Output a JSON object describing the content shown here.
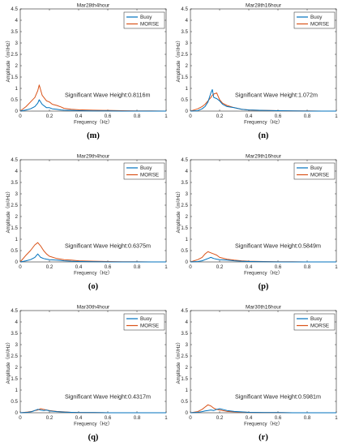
{
  "colors": {
    "buoy": "#0072BD",
    "morse": "#D95319",
    "axis": "#262626"
  },
  "axes": {
    "ylabel": "Amplitude（m²/Hz）",
    "xlabel": "Frequency（Hz）",
    "xlim": [
      0,
      1
    ],
    "ylim": [
      0,
      4.5
    ]
  },
  "legend": {
    "buoy": "Buoy",
    "morse": "MORSE"
  },
  "chart_data": [
    {
      "type": "line",
      "panel": "m",
      "title": "Mar28th4hour",
      "annotation": "Significant Wave Height:0.8116m",
      "x": [
        0,
        0.04,
        0.07,
        0.1,
        0.12,
        0.13,
        0.15,
        0.18,
        0.2,
        0.22,
        0.25,
        0.28,
        0.3,
        0.35,
        0.4,
        0.5,
        0.6,
        0.7,
        0.8,
        0.9,
        1.0
      ],
      "series": [
        {
          "name": "Buoy",
          "values": [
            0,
            0.05,
            0.1,
            0.2,
            0.35,
            0.5,
            0.3,
            0.15,
            0.15,
            0.1,
            0.08,
            0.05,
            0.04,
            0.03,
            0.02,
            0.01,
            0.01,
            0,
            0,
            0,
            0
          ]
        },
        {
          "name": "MORSE",
          "values": [
            0,
            0.2,
            0.4,
            0.6,
            0.9,
            1.15,
            0.7,
            0.45,
            0.4,
            0.3,
            0.25,
            0.18,
            0.12,
            0.08,
            0.06,
            0.04,
            0.03,
            0.02,
            0.01,
            0.01,
            0
          ]
        }
      ]
    },
    {
      "type": "line",
      "panel": "n",
      "title": "Mar28th16hour",
      "annotation": "Significant Wave Height:1.072m",
      "x": [
        0,
        0.05,
        0.08,
        0.1,
        0.12,
        0.14,
        0.15,
        0.16,
        0.18,
        0.2,
        0.22,
        0.25,
        0.3,
        0.35,
        0.4,
        0.5,
        0.6,
        0.7,
        0.8,
        0.9,
        1.0
      ],
      "series": [
        {
          "name": "Buoy",
          "values": [
            0,
            0.02,
            0.1,
            0.2,
            0.4,
            0.8,
            0.95,
            0.6,
            0.55,
            0.45,
            0.3,
            0.2,
            0.15,
            0.08,
            0.05,
            0.03,
            0.02,
            0.01,
            0,
            0,
            0
          ]
        },
        {
          "name": "MORSE",
          "values": [
            0,
            0.1,
            0.2,
            0.3,
            0.45,
            0.6,
            0.7,
            0.75,
            0.8,
            0.5,
            0.35,
            0.25,
            0.15,
            0.08,
            0.05,
            0.03,
            0.02,
            0.01,
            0.01,
            0,
            0
          ]
        }
      ]
    },
    {
      "type": "line",
      "panel": "o",
      "title": "Mar29th4hour",
      "annotation": "Significant Wave Height:0.6375m",
      "x": [
        0,
        0.04,
        0.07,
        0.1,
        0.12,
        0.14,
        0.16,
        0.18,
        0.2,
        0.25,
        0.3,
        0.35,
        0.4,
        0.5,
        0.6,
        0.7,
        0.8,
        0.9,
        1.0
      ],
      "series": [
        {
          "name": "Buoy",
          "values": [
            0,
            0.05,
            0.1,
            0.2,
            0.35,
            0.2,
            0.15,
            0.12,
            0.1,
            0.08,
            0.05,
            0.03,
            0.02,
            0.01,
            0,
            0,
            0,
            0,
            0
          ]
        },
        {
          "name": "MORSE",
          "values": [
            0,
            0.3,
            0.5,
            0.75,
            0.85,
            0.7,
            0.5,
            0.35,
            0.25,
            0.15,
            0.1,
            0.08,
            0.05,
            0.03,
            0.02,
            0.01,
            0.01,
            0,
            0
          ]
        }
      ]
    },
    {
      "type": "line",
      "panel": "p",
      "title": "Mar29th16hour",
      "annotation": "Significant Wave Height:0.5849m",
      "x": [
        0,
        0.05,
        0.08,
        0.1,
        0.12,
        0.14,
        0.16,
        0.18,
        0.2,
        0.25,
        0.3,
        0.35,
        0.4,
        0.5,
        0.6,
        0.7,
        0.8,
        0.9,
        1.0
      ],
      "series": [
        {
          "name": "Buoy",
          "values": [
            0,
            0.02,
            0.05,
            0.1,
            0.15,
            0.2,
            0.15,
            0.12,
            0.1,
            0.08,
            0.05,
            0.03,
            0.02,
            0.01,
            0,
            0,
            0,
            0,
            0
          ]
        },
        {
          "name": "MORSE",
          "values": [
            0,
            0.1,
            0.2,
            0.35,
            0.45,
            0.4,
            0.35,
            0.3,
            0.2,
            0.12,
            0.08,
            0.05,
            0.03,
            0.02,
            0.01,
            0.01,
            0,
            0,
            0
          ]
        }
      ]
    },
    {
      "type": "line",
      "panel": "q",
      "title": "Mar30th4hour",
      "annotation": "Significant Wave Height:0.4317m",
      "x": [
        0,
        0.05,
        0.08,
        0.1,
        0.12,
        0.14,
        0.16,
        0.18,
        0.2,
        0.25,
        0.3,
        0.35,
        0.4,
        0.5,
        0.6,
        0.7,
        0.8,
        0.9,
        1.0
      ],
      "series": [
        {
          "name": "Buoy",
          "values": [
            0,
            0.02,
            0.05,
            0.1,
            0.15,
            0.12,
            0.1,
            0.12,
            0.08,
            0.05,
            0.03,
            0.02,
            0.01,
            0.01,
            0,
            0,
            0,
            0,
            0
          ]
        },
        {
          "name": "MORSE",
          "values": [
            0,
            0.03,
            0.06,
            0.1,
            0.12,
            0.18,
            0.15,
            0.12,
            0.1,
            0.06,
            0.04,
            0.02,
            0.01,
            0.01,
            0,
            0,
            0,
            0,
            0
          ]
        }
      ]
    },
    {
      "type": "line",
      "panel": "r",
      "title": "Mar30th16hour",
      "annotation": "Significant Wave Height:0.5981m",
      "x": [
        0,
        0.05,
        0.08,
        0.1,
        0.12,
        0.14,
        0.16,
        0.18,
        0.2,
        0.22,
        0.25,
        0.3,
        0.35,
        0.4,
        0.5,
        0.6,
        0.7,
        0.8,
        0.9,
        1.0
      ],
      "series": [
        {
          "name": "Buoy",
          "values": [
            0,
            0.02,
            0.05,
            0.08,
            0.1,
            0.12,
            0.1,
            0.15,
            0.18,
            0.15,
            0.1,
            0.06,
            0.04,
            0.02,
            0.01,
            0.01,
            0,
            0,
            0,
            0
          ]
        },
        {
          "name": "MORSE",
          "values": [
            0,
            0.05,
            0.15,
            0.25,
            0.35,
            0.3,
            0.2,
            0.15,
            0.12,
            0.1,
            0.06,
            0.04,
            0.03,
            0.02,
            0.01,
            0.01,
            0,
            0,
            0,
            0
          ]
        }
      ]
    }
  ]
}
